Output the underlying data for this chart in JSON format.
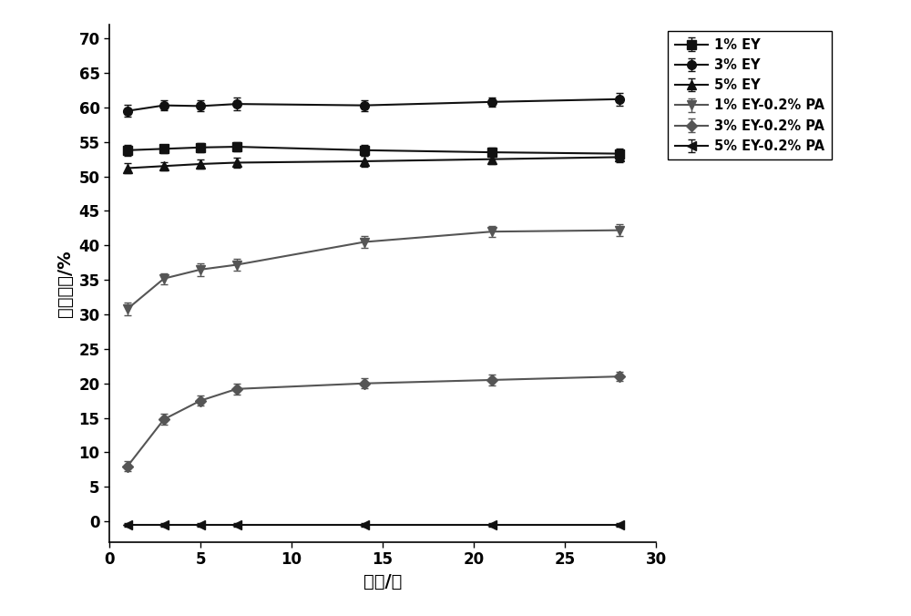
{
  "title": "",
  "xlabel": "时间/天",
  "ylabel": "乳析指数/%",
  "xlim": [
    0,
    30
  ],
  "ylim": [
    -3,
    72
  ],
  "xticks": [
    0,
    5,
    10,
    15,
    20,
    25,
    30
  ],
  "yticks": [
    0,
    5,
    10,
    15,
    20,
    25,
    30,
    35,
    40,
    45,
    50,
    55,
    60,
    65,
    70
  ],
  "x": [
    1,
    3,
    5,
    7,
    14,
    21,
    28
  ],
  "series": [
    {
      "label": "1% EY",
      "y": [
        53.8,
        54.0,
        54.2,
        54.3,
        53.8,
        53.5,
        53.3
      ],
      "yerr": [
        0.8,
        0.6,
        0.7,
        0.7,
        0.8,
        0.7,
        0.8
      ],
      "marker": "s",
      "color": "#111111",
      "linestyle": "-",
      "markersize": 7
    },
    {
      "label": "3% EY",
      "y": [
        59.5,
        60.3,
        60.2,
        60.5,
        60.3,
        60.8,
        61.2
      ],
      "yerr": [
        0.9,
        0.7,
        0.8,
        0.9,
        0.8,
        0.7,
        0.9
      ],
      "marker": "o",
      "color": "#111111",
      "linestyle": "-",
      "markersize": 7
    },
    {
      "label": "5% EY",
      "y": [
        51.2,
        51.5,
        51.8,
        52.0,
        52.2,
        52.5,
        52.8
      ],
      "yerr": [
        0.7,
        0.6,
        0.7,
        0.7,
        0.8,
        0.7,
        0.8
      ],
      "marker": "^",
      "color": "#111111",
      "linestyle": "-",
      "markersize": 7
    },
    {
      "label": "1% EY-0.2% PA",
      "y": [
        30.8,
        35.2,
        36.5,
        37.2,
        40.5,
        42.0,
        42.2
      ],
      "yerr": [
        0.9,
        0.8,
        0.9,
        0.8,
        0.9,
        0.8,
        0.9
      ],
      "marker": "v",
      "color": "#555555",
      "linestyle": "-",
      "markersize": 7
    },
    {
      "label": "3% EY-0.2% PA",
      "y": [
        8.0,
        14.8,
        17.5,
        19.2,
        20.0,
        20.5,
        21.0
      ],
      "yerr": [
        0.7,
        0.8,
        0.7,
        0.8,
        0.7,
        0.8,
        0.7
      ],
      "marker": "D",
      "color": "#555555",
      "linestyle": "-",
      "markersize": 6
    },
    {
      "label": "5% EY-0.2% PA",
      "y": [
        -0.5,
        -0.5,
        -0.5,
        -0.5,
        -0.5,
        -0.5,
        -0.5
      ],
      "yerr": [
        0.3,
        0.3,
        0.3,
        0.3,
        0.3,
        0.3,
        0.3
      ],
      "marker": "<",
      "color": "#111111",
      "linestyle": "-",
      "markersize": 7
    }
  ],
  "background_color": "#ffffff",
  "legend_fontsize": 10.5,
  "axis_fontsize": 14,
  "tick_fontsize": 12
}
